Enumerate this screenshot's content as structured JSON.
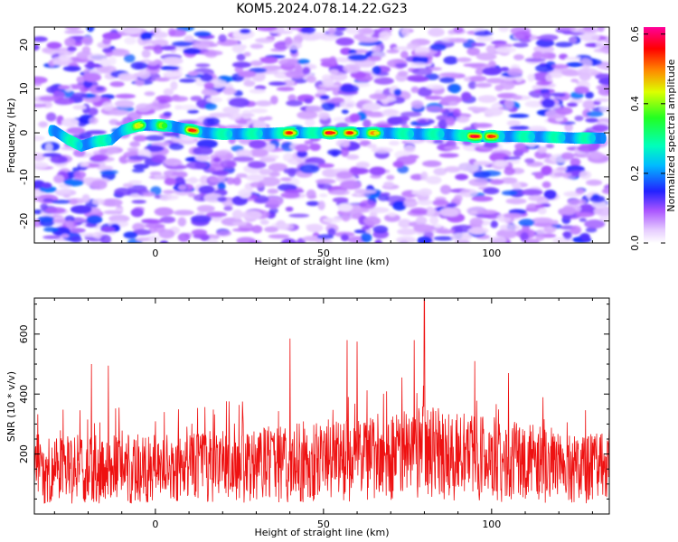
{
  "title": "KOM5.2024.078.14.22.G23",
  "colors": {
    "snr_line": "#ee1111",
    "axes": "#000000",
    "background": "#ffffff"
  },
  "chart_data": [
    {
      "type": "heatmap",
      "xlabel": "Height of straight line (km)",
      "ylabel": "Frequency (Hz)",
      "xlim": [
        -36,
        135
      ],
      "ylim": [
        -25,
        24
      ],
      "xticks": [
        0,
        50,
        100
      ],
      "yticks": [
        -20,
        -10,
        0,
        10,
        20
      ],
      "colorbar": {
        "label": "Normalized spectral amplitude",
        "range": [
          0.0,
          0.62
        ],
        "ticks": [
          0.0,
          0.2,
          0.4,
          0.6
        ],
        "colormap": "white-violet-blue-cyan-green-yellow-orange-red-magenta"
      },
      "ridge": {
        "description_points": [
          [
            -30,
            0.5
          ],
          [
            -26,
            -1.5
          ],
          [
            -22,
            -3.0
          ],
          [
            -18,
            -2.0
          ],
          [
            -13,
            -1.5
          ],
          [
            -10,
            0.5
          ],
          [
            -5,
            1.7
          ],
          [
            0,
            1.8
          ],
          [
            5,
            1.5
          ],
          [
            10,
            0.7
          ],
          [
            15,
            0.0
          ],
          [
            20,
            -0.3
          ],
          [
            30,
            -0.2
          ],
          [
            40,
            0.0
          ],
          [
            50,
            0.0
          ],
          [
            60,
            0.0
          ],
          [
            70,
            -0.1
          ],
          [
            78,
            -0.3
          ],
          [
            85,
            -0.3
          ],
          [
            95,
            -0.8
          ],
          [
            105,
            -0.8
          ],
          [
            115,
            -0.9
          ],
          [
            125,
            -1.2
          ],
          [
            133,
            -1.2
          ]
        ],
        "peaks": [
          [
            -5,
            0.45
          ],
          [
            2,
            0.4
          ],
          [
            11,
            0.55
          ],
          [
            40,
            0.55
          ],
          [
            52,
            0.6
          ],
          [
            58,
            0.55
          ],
          [
            65,
            0.5
          ],
          [
            95,
            0.6
          ],
          [
            100,
            0.55
          ]
        ]
      }
    },
    {
      "type": "line",
      "xlabel": "Height of straight line (km)",
      "ylabel": "SNR (10 * v/v)",
      "xlim": [
        -36,
        135
      ],
      "ylim": [
        0,
        720
      ],
      "xticks": [
        0,
        50,
        100
      ],
      "yticks": [
        200,
        400,
        600
      ],
      "series": [
        {
          "baseline": [
            [
              -36,
              150
            ],
            [
              0,
              150
            ],
            [
              30,
              165
            ],
            [
              60,
              185
            ],
            [
              80,
              205
            ],
            [
              100,
              180
            ],
            [
              135,
              150
            ]
          ],
          "spikes": [
            [
              -19,
              500
            ],
            [
              -14,
              495
            ],
            [
              40,
              585
            ],
            [
              57,
              580
            ],
            [
              60,
              575
            ],
            [
              77,
              580
            ],
            [
              80,
              720
            ],
            [
              95,
              510
            ],
            [
              105,
              470
            ]
          ]
        }
      ]
    }
  ]
}
